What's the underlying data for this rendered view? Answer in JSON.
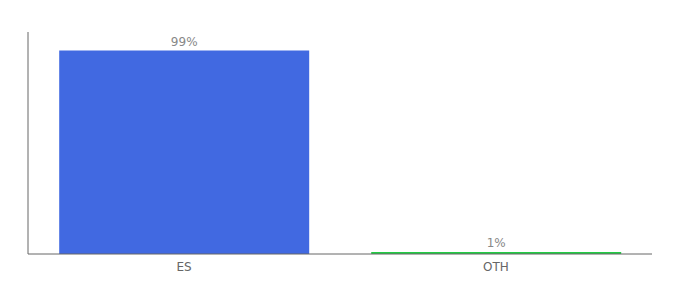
{
  "chart_data": {
    "type": "bar",
    "categories": [
      "ES",
      "OTH"
    ],
    "values": [
      99,
      1
    ],
    "value_labels": [
      "99%",
      "1%"
    ],
    "colors": [
      "#4169E1",
      "#22CC44"
    ],
    "ylim": [
      0,
      108
    ],
    "data_labels": true,
    "tick_labels": "x"
  }
}
